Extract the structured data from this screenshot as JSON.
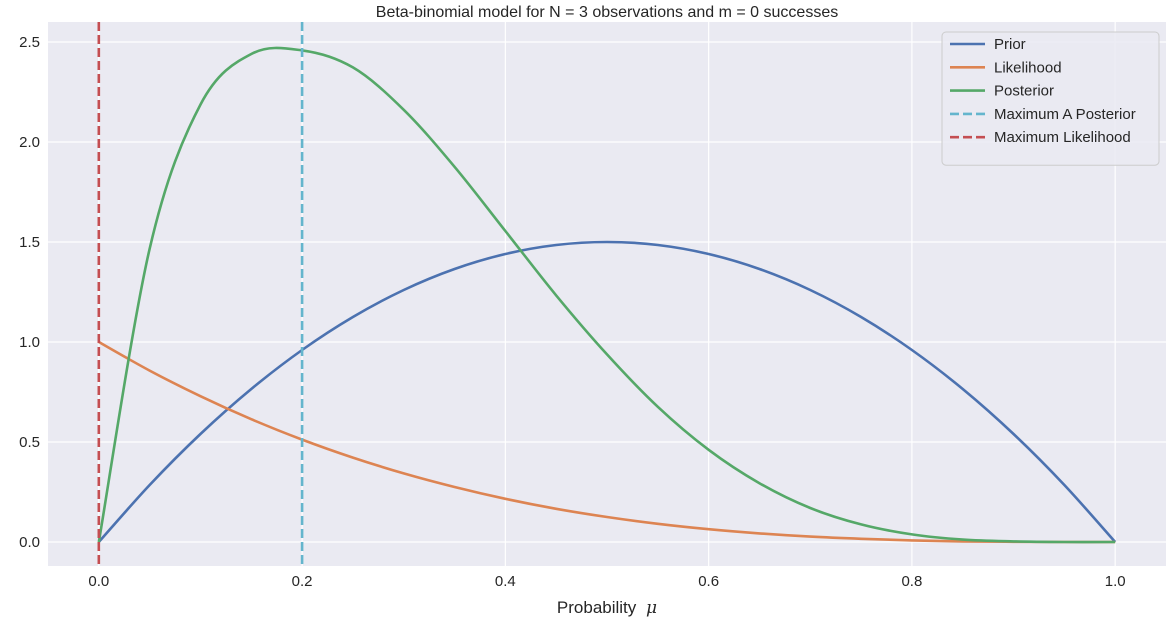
{
  "chart_data": {
    "type": "line",
    "title": "Beta-binomial model for N = 3 observations and m = 0 successes",
    "xlabel": "Probability",
    "xlabel_symbol": "μ",
    "ylabel": "",
    "xlim": [
      -0.05,
      1.05
    ],
    "ylim": [
      -0.12,
      2.6
    ],
    "grid": true,
    "legend_position": "top-right",
    "x_ticks": [
      0.0,
      0.2,
      0.4,
      0.6,
      0.8,
      1.0
    ],
    "x_tick_labels": [
      "0.0",
      "0.2",
      "0.4",
      "0.6",
      "0.8",
      "1.0"
    ],
    "y_ticks": [
      0.0,
      0.5,
      1.0,
      1.5,
      2.0,
      2.5
    ],
    "y_tick_labels": [
      "0.0",
      "0.5",
      "1.0",
      "1.5",
      "2.0",
      "2.5"
    ],
    "x": [
      0.0,
      0.05,
      0.1,
      0.15,
      0.2,
      0.25,
      0.3,
      0.35,
      0.4,
      0.45,
      0.5,
      0.55,
      0.6,
      0.65,
      0.7,
      0.75,
      0.8,
      0.85,
      0.9,
      0.95,
      1.0
    ],
    "series": [
      {
        "name": "Prior",
        "color": "#4c72b0",
        "dashed": false,
        "values": [
          0.0,
          0.285,
          0.54,
          0.765,
          0.96,
          1.125,
          1.26,
          1.365,
          1.44,
          1.485,
          1.5,
          1.485,
          1.44,
          1.365,
          1.26,
          1.125,
          0.96,
          0.765,
          0.54,
          0.285,
          0.0
        ]
      },
      {
        "name": "Likelihood",
        "color": "#dd8452",
        "dashed": false,
        "values": [
          1.0,
          0.857,
          0.729,
          0.614,
          0.512,
          0.422,
          0.343,
          0.275,
          0.216,
          0.166,
          0.125,
          0.091,
          0.064,
          0.043,
          0.027,
          0.016,
          0.008,
          0.003,
          0.001,
          0.0,
          0.0
        ]
      },
      {
        "name": "Posterior",
        "color": "#55a868",
        "dashed": false,
        "values": [
          0.0,
          1.466,
          2.187,
          2.44,
          2.458,
          2.373,
          2.161,
          1.876,
          1.555,
          1.233,
          0.938,
          0.676,
          0.461,
          0.294,
          0.17,
          0.088,
          0.038,
          0.012,
          0.003,
          0.0,
          0.0
        ]
      }
    ],
    "vlines": [
      {
        "name": "Maximum A Posterior",
        "x": 0.2,
        "color": "#64b5cd",
        "dashed": true
      },
      {
        "name": "Maximum Likelihood",
        "x": 0.0,
        "color": "#c44e52",
        "dashed": true
      }
    ]
  }
}
